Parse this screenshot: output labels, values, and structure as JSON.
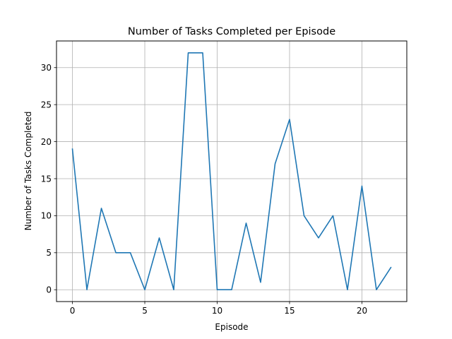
{
  "chart_data": {
    "type": "line",
    "title": "Number of Tasks Completed per Episode",
    "xlabel": "Episode",
    "ylabel": "Number of Tasks Completed",
    "x": [
      0,
      1,
      2,
      3,
      4,
      5,
      6,
      7,
      8,
      9,
      10,
      11,
      12,
      13,
      14,
      15,
      16,
      17,
      18,
      19,
      20,
      21,
      22
    ],
    "series": [
      {
        "values": [
          19,
          0,
          11,
          5,
          5,
          0,
          7,
          0,
          32,
          32,
          0,
          0,
          9,
          1,
          17,
          23,
          10,
          7,
          10,
          0,
          14,
          0,
          3
        ],
        "color": "#1f77b4"
      }
    ],
    "xlim": [
      -1.1,
      23.1
    ],
    "ylim": [
      -1.6,
      33.6
    ],
    "xticks": [
      0,
      5,
      10,
      15,
      20
    ],
    "xtick_labels": [
      "0",
      "5",
      "10",
      "15",
      "20"
    ],
    "yticks": [
      0,
      5,
      10,
      15,
      20,
      25,
      30
    ],
    "ytick_labels": [
      "0",
      "5",
      "10",
      "15",
      "20",
      "25",
      "30"
    ],
    "grid": true
  }
}
